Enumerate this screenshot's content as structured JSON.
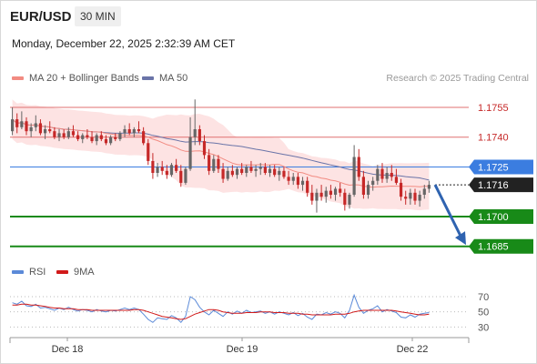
{
  "header": {
    "pair": "EUR/USD",
    "timeframe": "30 MIN",
    "datetime": "Monday, December 22, 2025 2:32:39 AM CET"
  },
  "legend": {
    "ma20_label": "MA 20 + Bollinger Bands",
    "ma50_label": "MA 50",
    "credit": "Research © 2025 Trading Central",
    "rsi_label": "RSI",
    "rsi_ma_label": "9MA"
  },
  "colors": {
    "ma20": "#f28b82",
    "band_fill": "#fde3e3",
    "ma50": "#6a74a8",
    "candle_up": "#666666",
    "candle_down": "#c62828",
    "resistance": "#e07070",
    "pivot": "#3b7de0",
    "support": "#188a18",
    "arrow": "#2f63b0",
    "rsi": "#5b8ad8",
    "rsi_ma": "#d11a1a"
  },
  "chart_data": [
    {
      "type": "candlestick",
      "title": "",
      "xlabel": "",
      "ylabel": "",
      "x_ticks": [
        "Dec 18",
        "Dec 19",
        "Dec 22"
      ],
      "ylim": [
        1.1678,
        1.1766
      ],
      "current_price": "1.1716",
      "levels": [
        {
          "value": 1.1755,
          "label": "1.1755",
          "kind": "resistance"
        },
        {
          "value": 1.174,
          "label": "1.1740",
          "kind": "resistance"
        },
        {
          "value": 1.1725,
          "label": "1.1725",
          "kind": "pivot"
        },
        {
          "value": 1.17,
          "label": "1.1700",
          "kind": "support"
        },
        {
          "value": 1.1685,
          "label": "1.1685",
          "kind": "support"
        }
      ],
      "forecast_arrow": {
        "from": 1.1716,
        "to": 1.1688
      },
      "candles": [
        [
          1.1743,
          1.1755,
          1.1741,
          1.1749
        ],
        [
          1.1749,
          1.1752,
          1.1742,
          1.1745
        ],
        [
          1.1745,
          1.1753,
          1.1744,
          1.1748
        ],
        [
          1.1748,
          1.175,
          1.1741,
          1.1743
        ],
        [
          1.1743,
          1.1747,
          1.174,
          1.1745
        ],
        [
          1.1745,
          1.1751,
          1.1743,
          1.1747
        ],
        [
          1.1747,
          1.1749,
          1.1741,
          1.1742
        ],
        [
          1.1742,
          1.1746,
          1.1739,
          1.1744
        ],
        [
          1.1744,
          1.1748,
          1.1742,
          1.1743
        ],
        [
          1.1743,
          1.1745,
          1.1739,
          1.174
        ],
        [
          1.174,
          1.1744,
          1.1738,
          1.1742
        ],
        [
          1.1742,
          1.1744,
          1.1739,
          1.174
        ],
        [
          1.174,
          1.1745,
          1.1739,
          1.1743
        ],
        [
          1.1743,
          1.1746,
          1.174,
          1.1741
        ],
        [
          1.1741,
          1.1743,
          1.1738,
          1.1739
        ],
        [
          1.1739,
          1.1742,
          1.1737,
          1.1741
        ],
        [
          1.1741,
          1.1744,
          1.1739,
          1.174
        ],
        [
          1.174,
          1.1743,
          1.1737,
          1.1738
        ],
        [
          1.1738,
          1.1742,
          1.1736,
          1.1741
        ],
        [
          1.1741,
          1.1743,
          1.1738,
          1.1739
        ],
        [
          1.1739,
          1.1741,
          1.1736,
          1.1737
        ],
        [
          1.1737,
          1.1741,
          1.1736,
          1.174
        ],
        [
          1.174,
          1.1742,
          1.1738,
          1.1739
        ],
        [
          1.1739,
          1.1743,
          1.1738,
          1.1742
        ],
        [
          1.1742,
          1.1746,
          1.174,
          1.1744
        ],
        [
          1.1744,
          1.1747,
          1.1741,
          1.1742
        ],
        [
          1.1742,
          1.1745,
          1.174,
          1.1744
        ],
        [
          1.1744,
          1.1748,
          1.1742,
          1.1743
        ],
        [
          1.1743,
          1.1745,
          1.1736,
          1.1737
        ],
        [
          1.1737,
          1.1739,
          1.1726,
          1.1728
        ],
        [
          1.1728,
          1.1732,
          1.1719,
          1.1722
        ],
        [
          1.1722,
          1.1727,
          1.172,
          1.1725
        ],
        [
          1.1725,
          1.1728,
          1.1721,
          1.1723
        ],
        [
          1.1723,
          1.1726,
          1.1719,
          1.1721
        ],
        [
          1.1721,
          1.1727,
          1.172,
          1.1726
        ],
        [
          1.1726,
          1.1729,
          1.1722,
          1.1723
        ],
        [
          1.1723,
          1.1726,
          1.1715,
          1.1717
        ],
        [
          1.1717,
          1.1725,
          1.1716,
          1.1724
        ],
        [
          1.1724,
          1.175,
          1.1723,
          1.174
        ],
        [
          1.174,
          1.1759,
          1.1736,
          1.1744
        ],
        [
          1.1744,
          1.1746,
          1.1736,
          1.1738
        ],
        [
          1.1738,
          1.1741,
          1.1729,
          1.1731
        ],
        [
          1.1731,
          1.1734,
          1.1721,
          1.1723
        ],
        [
          1.1723,
          1.1731,
          1.1722,
          1.1729
        ],
        [
          1.1729,
          1.1731,
          1.1722,
          1.1724
        ],
        [
          1.1724,
          1.1727,
          1.1717,
          1.1719
        ],
        [
          1.1719,
          1.1725,
          1.1718,
          1.1723
        ],
        [
          1.1723,
          1.1726,
          1.172,
          1.1721
        ],
        [
          1.1721,
          1.1725,
          1.1719,
          1.1724
        ],
        [
          1.1724,
          1.1727,
          1.1721,
          1.1722
        ],
        [
          1.1722,
          1.1726,
          1.172,
          1.1725
        ],
        [
          1.1725,
          1.1728,
          1.1722,
          1.1723
        ],
        [
          1.1723,
          1.1726,
          1.172,
          1.1724
        ],
        [
          1.1724,
          1.1727,
          1.1721,
          1.1725
        ],
        [
          1.1725,
          1.1727,
          1.1721,
          1.1722
        ],
        [
          1.1722,
          1.1726,
          1.172,
          1.1724
        ],
        [
          1.1724,
          1.1726,
          1.172,
          1.1721
        ],
        [
          1.1721,
          1.1725,
          1.1718,
          1.1723
        ],
        [
          1.1723,
          1.1725,
          1.1719,
          1.172
        ],
        [
          1.172,
          1.1723,
          1.1716,
          1.1718
        ],
        [
          1.1718,
          1.1722,
          1.1716,
          1.172
        ],
        [
          1.172,
          1.1722,
          1.1714,
          1.1716
        ],
        [
          1.1716,
          1.172,
          1.1713,
          1.1718
        ],
        [
          1.1718,
          1.172,
          1.171,
          1.1712
        ],
        [
          1.1712,
          1.1716,
          1.1706,
          1.1708
        ],
        [
          1.1708,
          1.1714,
          1.1702,
          1.1712
        ],
        [
          1.1712,
          1.1716,
          1.1708,
          1.171
        ],
        [
          1.171,
          1.1715,
          1.1707,
          1.1713
        ],
        [
          1.1713,
          1.1716,
          1.1709,
          1.1711
        ],
        [
          1.1711,
          1.1715,
          1.1708,
          1.1714
        ],
        [
          1.1714,
          1.1717,
          1.171,
          1.1712
        ],
        [
          1.1712,
          1.1714,
          1.1703,
          1.1706
        ],
        [
          1.1706,
          1.1712,
          1.1704,
          1.1711
        ],
        [
          1.1711,
          1.1736,
          1.171,
          1.173
        ],
        [
          1.173,
          1.1734,
          1.1718,
          1.172
        ],
        [
          1.172,
          1.1723,
          1.1709,
          1.1711
        ],
        [
          1.1711,
          1.1718,
          1.1709,
          1.1716
        ],
        [
          1.1716,
          1.172,
          1.1713,
          1.1718
        ],
        [
          1.1718,
          1.1726,
          1.1716,
          1.1724
        ],
        [
          1.1724,
          1.1727,
          1.1717,
          1.1719
        ],
        [
          1.1719,
          1.1725,
          1.1717,
          1.1722
        ],
        [
          1.1722,
          1.1726,
          1.1718,
          1.172
        ],
        [
          1.172,
          1.1724,
          1.1716,
          1.1717
        ],
        [
          1.1717,
          1.1719,
          1.1708,
          1.171
        ],
        [
          1.171,
          1.1713,
          1.1706,
          1.1709
        ],
        [
          1.1709,
          1.1714,
          1.1706,
          1.1712
        ],
        [
          1.1712,
          1.1714,
          1.1706,
          1.1708
        ],
        [
          1.1708,
          1.1713,
          1.1705,
          1.1711
        ],
        [
          1.1711,
          1.1716,
          1.1709,
          1.1714
        ],
        [
          1.1714,
          1.1718,
          1.1712,
          1.1716
        ]
      ]
    },
    {
      "type": "line",
      "title": "",
      "series_names": [
        "RSI",
        "9MA"
      ],
      "y_ticks": [
        70,
        50,
        30
      ],
      "ylim": [
        22,
        82
      ],
      "rsi": [
        62,
        60,
        64,
        58,
        57,
        60,
        55,
        56,
        54,
        52,
        55,
        53,
        56,
        53,
        51,
        53,
        52,
        50,
        53,
        51,
        50,
        52,
        51,
        53,
        55,
        53,
        55,
        53,
        47,
        40,
        36,
        42,
        41,
        40,
        45,
        42,
        36,
        44,
        70,
        66,
        56,
        50,
        46,
        52,
        48,
        44,
        50,
        47,
        51,
        48,
        52,
        49,
        50,
        51,
        48,
        50,
        47,
        50,
        48,
        46,
        49,
        45,
        48,
        43,
        40,
        47,
        46,
        49,
        47,
        50,
        48,
        42,
        52,
        72,
        56,
        48,
        52,
        54,
        58,
        50,
        53,
        51,
        49,
        43,
        42,
        46,
        43,
        47,
        48,
        49
      ],
      "rsi_ma": [
        59,
        59,
        60,
        60,
        59,
        59,
        58,
        57,
        56,
        55,
        55,
        54,
        54,
        54,
        53,
        53,
        53,
        52,
        52,
        52,
        52,
        52,
        52,
        52,
        52,
        52,
        53,
        53,
        52,
        50,
        48,
        46,
        44,
        43,
        42,
        41,
        40,
        41,
        44,
        47,
        49,
        51,
        53,
        53,
        52,
        50,
        49,
        48,
        48,
        48,
        49,
        49,
        49,
        50,
        50,
        50,
        49,
        49,
        49,
        48,
        48,
        48,
        47,
        47,
        46,
        46,
        46,
        46,
        46,
        47,
        47,
        47,
        48,
        50,
        51,
        52,
        52,
        52,
        52,
        52,
        52,
        52,
        51,
        50,
        49,
        48,
        47,
        46,
        46,
        47
      ]
    }
  ]
}
